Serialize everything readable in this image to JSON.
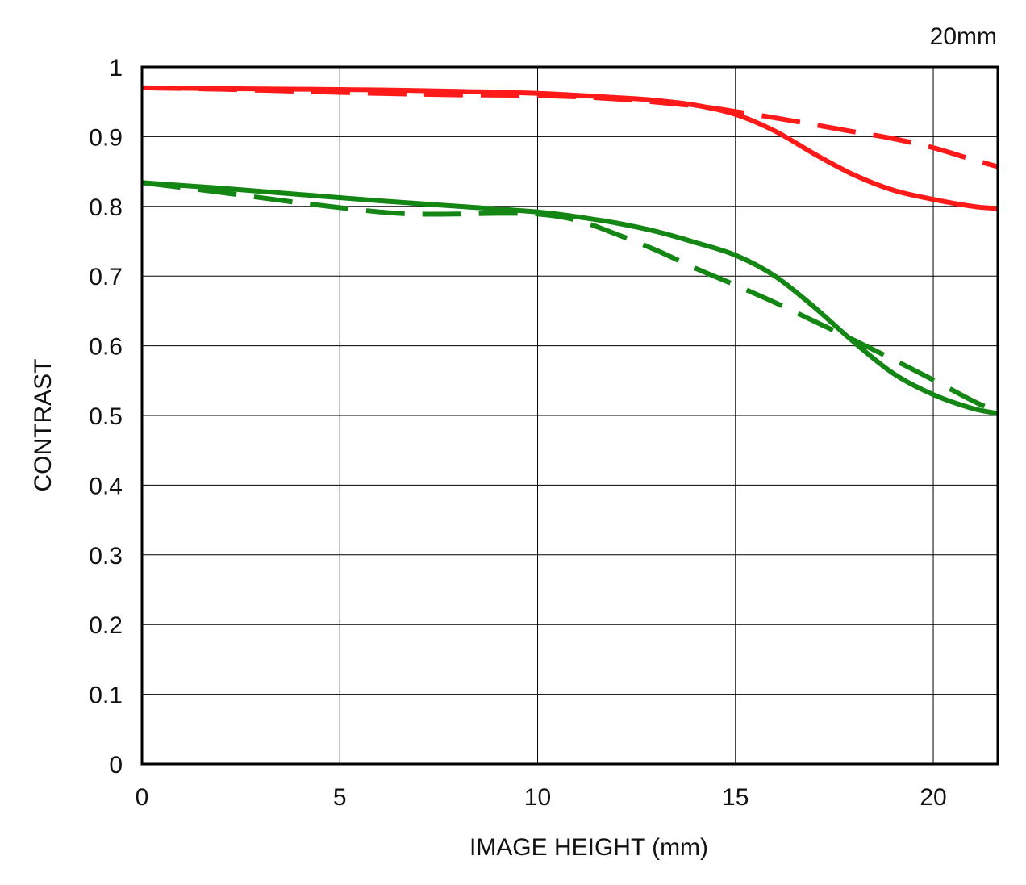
{
  "chart_data": {
    "type": "line",
    "title": "20mm",
    "xlabel": "IMAGE HEIGHT (mm)",
    "ylabel": "CONTRAST",
    "xlim": [
      0,
      21.63
    ],
    "ylim": [
      0,
      1
    ],
    "x_ticks": [
      "0",
      "5",
      "10",
      "15",
      "20"
    ],
    "y_ticks": [
      "0",
      "0.1",
      "0.2",
      "0.3",
      "0.4",
      "0.5",
      "0.6",
      "0.7",
      "0.8",
      "0.9",
      "1"
    ],
    "grid": true,
    "legend": "none",
    "series": [
      {
        "color": "#ff1a1a",
        "style": "solid",
        "x": [
          0,
          2,
          4,
          6,
          8,
          10,
          12,
          13,
          14,
          15,
          16,
          17,
          18,
          19,
          20,
          21,
          21.63
        ],
        "y": [
          0.97,
          0.969,
          0.968,
          0.967,
          0.965,
          0.962,
          0.956,
          0.952,
          0.945,
          0.932,
          0.908,
          0.875,
          0.845,
          0.823,
          0.81,
          0.8,
          0.797
        ]
      },
      {
        "color": "#ff1a1a",
        "style": "dashed",
        "x": [
          0,
          2,
          4,
          6,
          8,
          10,
          12,
          14,
          15,
          16,
          17,
          18,
          19,
          20,
          21,
          21.63
        ],
        "y": [
          0.97,
          0.968,
          0.965,
          0.962,
          0.96,
          0.959,
          0.954,
          0.944,
          0.936,
          0.927,
          0.917,
          0.907,
          0.897,
          0.884,
          0.867,
          0.857
        ]
      },
      {
        "color": "#138613",
        "style": "solid",
        "x": [
          0,
          2,
          4,
          6,
          8,
          10,
          11,
          12,
          13,
          14,
          15,
          16,
          17,
          18,
          19,
          20,
          21,
          21.63
        ],
        "y": [
          0.834,
          0.826,
          0.817,
          0.808,
          0.8,
          0.792,
          0.785,
          0.776,
          0.764,
          0.748,
          0.73,
          0.7,
          0.655,
          0.605,
          0.56,
          0.53,
          0.51,
          0.503
        ]
      },
      {
        "color": "#138613",
        "style": "dashed",
        "x": [
          0,
          2,
          4,
          6,
          7,
          8,
          9,
          10,
          11,
          12,
          13,
          14,
          15,
          16,
          17,
          18,
          19,
          20,
          21,
          21.63
        ],
        "y": [
          0.834,
          0.82,
          0.805,
          0.792,
          0.789,
          0.789,
          0.79,
          0.789,
          0.78,
          0.76,
          0.737,
          0.711,
          0.687,
          0.662,
          0.635,
          0.608,
          0.58,
          0.551,
          0.521,
          0.505
        ]
      }
    ]
  }
}
